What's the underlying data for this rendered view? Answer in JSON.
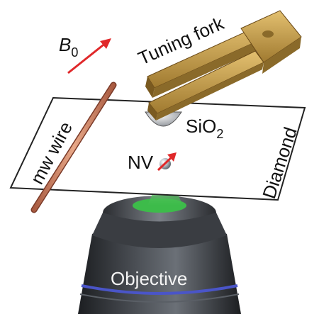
{
  "labels": {
    "b0_symbol": "B",
    "b0_subscript": "0",
    "tuning_fork": "Tuning fork",
    "mw_wire": "mw wire",
    "sio2_main": "SiO",
    "sio2_subscript": "2",
    "nv": "NV",
    "diamond": "Diamond",
    "objective": "Objective"
  },
  "colors": {
    "field_arrow": "#e0282a",
    "fork_gold": "#c9a24a",
    "fork_dark": "#8a6a2a",
    "wire": "#d08a6a",
    "laser_green": "#3dbb4a",
    "objective_dark": "#2f3236",
    "objective_ring": "#4a55c8",
    "diamond_plate": "#ffffff"
  },
  "icons": {
    "b0": "red-arrow-icon",
    "nv": "spin-arrow-icon"
  }
}
